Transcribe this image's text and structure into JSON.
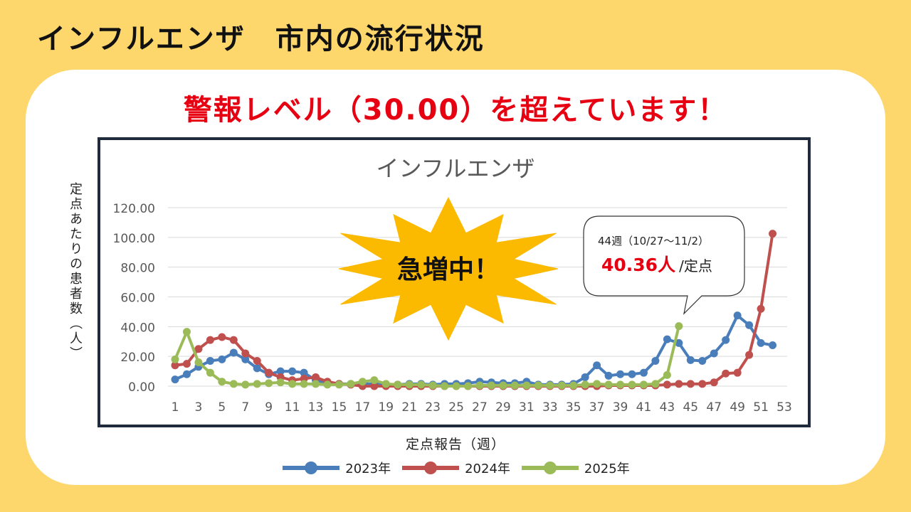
{
  "page": {
    "title": "インフルエンザ　市内の流行状況",
    "alert": "警報レベル（30.00）を超えています！"
  },
  "burst": {
    "text": "急増中！"
  },
  "callout": {
    "week_text": "44週（10/27〜11/2）",
    "value_text": "40.36人",
    "unit_text": "/定点"
  },
  "colors": {
    "background": "#FDD76B",
    "alert": "#E60012",
    "frame": "#1F2A3C",
    "burst": "#FBBA00"
  },
  "chart_data": {
    "type": "line",
    "title": "インフルエンザ",
    "xlabel": "定点報告（週）",
    "ylabel": "定点あたりの患者数（人）",
    "xlim": [
      1,
      53
    ],
    "ylim": [
      0,
      120
    ],
    "x_ticks": [
      "1",
      "3",
      "5",
      "7",
      "9",
      "11",
      "13",
      "15",
      "17",
      "19",
      "21",
      "23",
      "25",
      "27",
      "29",
      "31",
      "33",
      "35",
      "37",
      "39",
      "41",
      "43",
      "45",
      "47",
      "49",
      "51",
      "53"
    ],
    "y_ticks": [
      "0.00",
      "20.00",
      "40.00",
      "60.00",
      "80.00",
      "100.00",
      "120.00"
    ],
    "grid": true,
    "legend_position": "bottom",
    "series": [
      {
        "name": "2023年",
        "color": "#4A7EBB",
        "x": [
          1,
          2,
          3,
          4,
          5,
          6,
          7,
          8,
          9,
          10,
          11,
          12,
          13,
          14,
          15,
          16,
          17,
          18,
          19,
          20,
          21,
          22,
          23,
          24,
          25,
          26,
          27,
          28,
          29,
          30,
          31,
          32,
          33,
          34,
          35,
          36,
          37,
          38,
          39,
          40,
          41,
          42,
          43,
          44,
          45,
          46,
          47,
          48,
          49,
          50,
          51,
          52
        ],
        "values": [
          4.5,
          8,
          13,
          17,
          18,
          22.5,
          18,
          12,
          8,
          10,
          10,
          9,
          4,
          2,
          1.5,
          1.5,
          1.5,
          1.5,
          1,
          1,
          1.5,
          1.5,
          1,
          1.5,
          1.5,
          2,
          3,
          2.5,
          2,
          2,
          3,
          1,
          1,
          1,
          1.5,
          6,
          14,
          7,
          8,
          8,
          9,
          17,
          31.5,
          29,
          17.5,
          17,
          22,
          31,
          47.5,
          41,
          29,
          27.5
        ]
      },
      {
        "name": "2024年",
        "color": "#C0504D",
        "x": [
          1,
          2,
          3,
          4,
          5,
          6,
          7,
          8,
          9,
          10,
          11,
          12,
          13,
          14,
          15,
          16,
          17,
          18,
          19,
          20,
          21,
          22,
          23,
          24,
          25,
          26,
          27,
          28,
          29,
          30,
          31,
          32,
          33,
          34,
          35,
          36,
          37,
          38,
          39,
          40,
          41,
          42,
          43,
          44,
          45,
          46,
          47,
          48,
          49,
          50,
          51,
          52
        ],
        "values": [
          14,
          15,
          25,
          31,
          33,
          31,
          22,
          17,
          9,
          6,
          4,
          5,
          6,
          3,
          1.5,
          1,
          0,
          0,
          0,
          0,
          0,
          0,
          0,
          0,
          0,
          0,
          0,
          0,
          0,
          0,
          0,
          0,
          0,
          0,
          0,
          0,
          0,
          0.5,
          0.5,
          0.5,
          0.5,
          0.5,
          1,
          1.5,
          1.5,
          1.5,
          2.5,
          8.5,
          9,
          21,
          52,
          102.5
        ]
      },
      {
        "name": "2025年",
        "color": "#9BBB59",
        "x": [
          1,
          2,
          3,
          4,
          5,
          6,
          7,
          8,
          9,
          10,
          11,
          12,
          13,
          14,
          15,
          16,
          17,
          18,
          19,
          20,
          21,
          22,
          23,
          24,
          25,
          26,
          27,
          28,
          29,
          30,
          31,
          32,
          33,
          34,
          35,
          36,
          37,
          38,
          39,
          40,
          41,
          42,
          43,
          44
        ],
        "values": [
          18,
          36.5,
          16,
          9,
          3,
          1.5,
          1,
          1.5,
          2,
          2.5,
          1.5,
          1.5,
          1.5,
          1,
          1,
          1.5,
          3,
          4,
          1.5,
          1,
          1,
          1,
          0.5,
          0,
          0,
          0,
          0.5,
          0.5,
          0.5,
          0.5,
          0.5,
          0.5,
          0.5,
          0.5,
          0.5,
          1,
          1.5,
          1,
          1,
          1,
          1,
          1.5,
          7.5,
          40.36
        ]
      }
    ]
  }
}
